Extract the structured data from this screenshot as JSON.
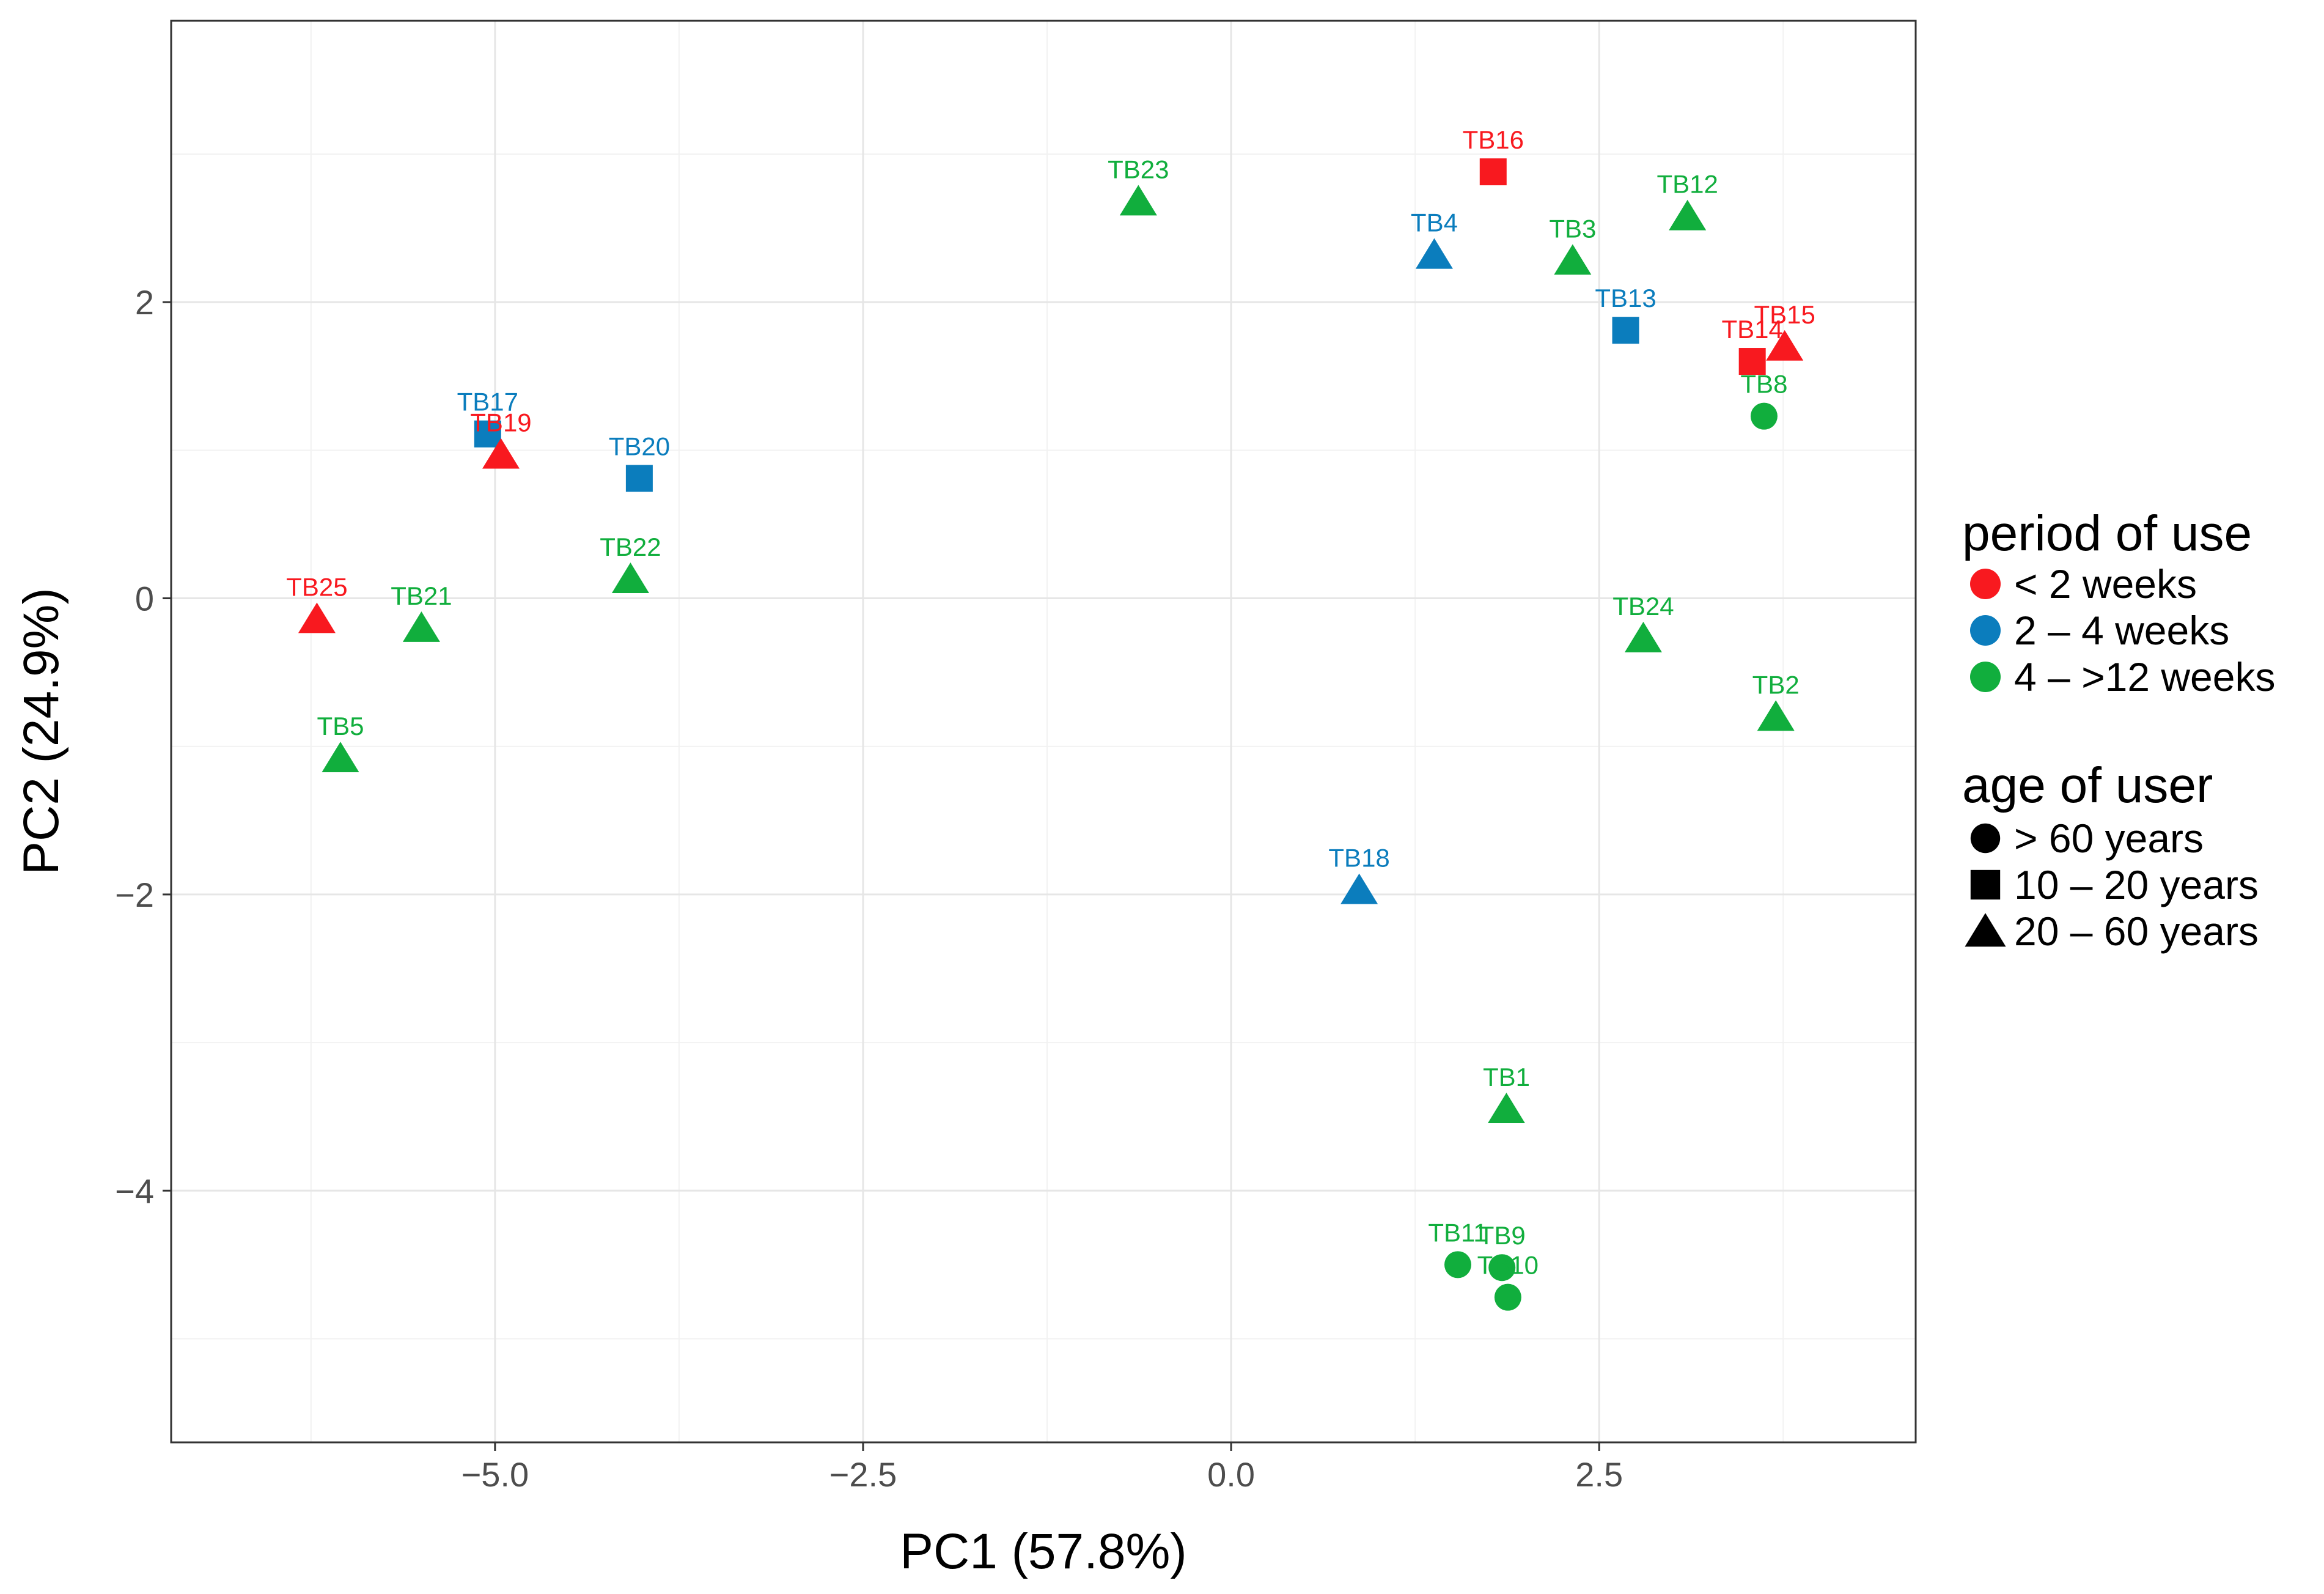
{
  "chart_data": {
    "type": "scatter",
    "xlabel": "PC1 (57.8%)",
    "ylabel": "PC2 (24.9%)",
    "xlim": [
      -7.2,
      4.65
    ],
    "ylim": [
      -5.7,
      3.9
    ],
    "xticks": [
      -5.0,
      -2.5,
      0.0,
      2.5
    ],
    "xtick_labels": [
      "−5.0",
      "−2.5",
      "0.0",
      "2.5"
    ],
    "yticks": [
      -4,
      -2,
      0,
      2
    ],
    "ytick_labels": [
      "−4",
      "−2",
      "0",
      "2"
    ],
    "grid": true,
    "legend": {
      "position": "right",
      "color_title": "period of use",
      "color_entries": [
        {
          "key": "lt2",
          "label": "< 2 weeks",
          "color": "#f8191f"
        },
        {
          "key": "2to4",
          "label": "2 – 4 weeks",
          "color": "#0b7dbd"
        },
        {
          "key": "4to12",
          "label": "4 – >12 weeks",
          "color": "#11ae3d"
        }
      ],
      "shape_title": "age of user",
      "shape_entries": [
        {
          "key": "circle",
          "label": "> 60 years"
        },
        {
          "key": "square",
          "label": "10 – 20 years"
        },
        {
          "key": "triangle",
          "label": "20 – 60 years"
        }
      ]
    },
    "points": [
      {
        "label": "TB1",
        "x": 1.87,
        "y": -3.45,
        "period": "4to12",
        "shape": "triangle"
      },
      {
        "label": "TB2",
        "x": 3.7,
        "y": -0.8,
        "period": "4to12",
        "shape": "triangle"
      },
      {
        "label": "TB3",
        "x": 2.32,
        "y": 2.28,
        "period": "4to12",
        "shape": "triangle"
      },
      {
        "label": "TB4",
        "x": 1.38,
        "y": 2.32,
        "period": "2to4",
        "shape": "triangle"
      },
      {
        "label": "TB5",
        "x": -6.05,
        "y": -1.08,
        "period": "4to12",
        "shape": "triangle"
      },
      {
        "label": "TB8",
        "x": 3.62,
        "y": 1.23,
        "period": "4to12",
        "shape": "circle"
      },
      {
        "label": "TB9",
        "x": 1.84,
        "y": -4.52,
        "period": "4to12",
        "shape": "circle"
      },
      {
        "label": "TB10",
        "x": 1.88,
        "y": -4.72,
        "period": "4to12",
        "shape": "circle"
      },
      {
        "label": "TB11",
        "x": 1.54,
        "y": -4.5,
        "period": "4to12",
        "shape": "circle"
      },
      {
        "label": "TB12",
        "x": 3.1,
        "y": 2.58,
        "period": "4to12",
        "shape": "triangle"
      },
      {
        "label": "TB13",
        "x": 2.68,
        "y": 1.81,
        "period": "2to4",
        "shape": "square"
      },
      {
        "label": "TB14",
        "x": 3.54,
        "y": 1.6,
        "period": "lt2",
        "shape": "square"
      },
      {
        "label": "TB15",
        "x": 3.76,
        "y": 1.7,
        "period": "lt2",
        "shape": "triangle"
      },
      {
        "label": "TB16",
        "x": 1.78,
        "y": 2.88,
        "period": "lt2",
        "shape": "square"
      },
      {
        "label": "TB17",
        "x": -5.05,
        "y": 1.11,
        "period": "2to4",
        "shape": "square"
      },
      {
        "label": "TB18",
        "x": 0.87,
        "y": -1.97,
        "period": "2to4",
        "shape": "triangle"
      },
      {
        "label": "TB19",
        "x": -4.96,
        "y": 0.97,
        "period": "lt2",
        "shape": "triangle"
      },
      {
        "label": "TB20",
        "x": -4.02,
        "y": 0.81,
        "period": "2to4",
        "shape": "square"
      },
      {
        "label": "TB21",
        "x": -5.5,
        "y": -0.2,
        "period": "4to12",
        "shape": "triangle"
      },
      {
        "label": "TB22",
        "x": -4.08,
        "y": 0.13,
        "period": "4to12",
        "shape": "triangle"
      },
      {
        "label": "TB23",
        "x": -0.63,
        "y": 2.68,
        "period": "4to12",
        "shape": "triangle"
      },
      {
        "label": "TB24",
        "x": 2.8,
        "y": -0.27,
        "period": "4to12",
        "shape": "triangle"
      },
      {
        "label": "TB25",
        "x": -6.21,
        "y": -0.14,
        "period": "lt2",
        "shape": "triangle"
      }
    ]
  }
}
